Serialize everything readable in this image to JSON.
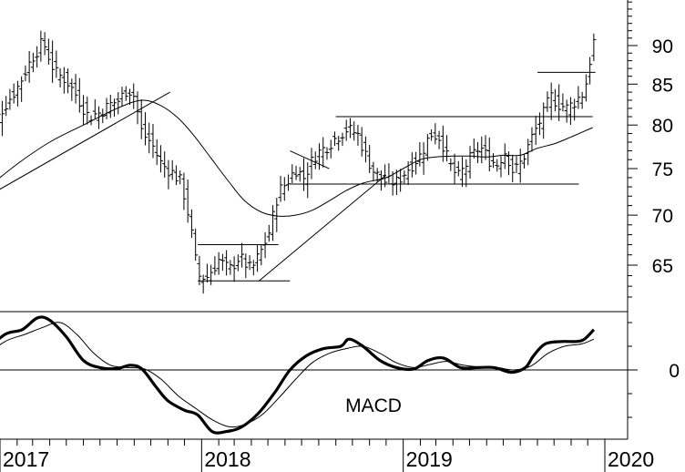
{
  "chart_data": [
    {
      "type": "ohlc",
      "panel": "price",
      "title": "",
      "xlabel": "",
      "ylabel": "",
      "y_scale": "log",
      "ylim": [
        60.5,
        97
      ],
      "y_ticks": [
        65,
        70,
        75,
        80,
        85,
        90
      ],
      "x_ticks": [
        "2017",
        "2018",
        "2019",
        "2020"
      ],
      "x_range": [
        "2016-12",
        "2020-01"
      ],
      "bar_interval": "week",
      "anchors": [
        [
          "2016-12-01",
          76.5
        ],
        [
          "2017-01-01",
          81.5
        ],
        [
          "2017-02-01",
          84.5
        ],
        [
          "2017-03-01",
          88.5
        ],
        [
          "2017-03-20",
          90.5
        ],
        [
          "2017-04-10",
          86.5
        ],
        [
          "2017-05-01",
          85.5
        ],
        [
          "2017-05-20",
          83.5
        ],
        [
          "2017-06-10",
          81.0
        ],
        [
          "2017-07-01",
          81.5
        ],
        [
          "2017-07-20",
          82.5
        ],
        [
          "2017-08-05",
          83.0
        ],
        [
          "2017-08-20",
          84.5
        ],
        [
          "2017-09-01",
          83.5
        ],
        [
          "2017-09-15",
          79.0
        ],
        [
          "2017-10-01",
          78.0
        ],
        [
          "2017-10-20",
          75.5
        ],
        [
          "2017-11-10",
          74.5
        ],
        [
          "2017-11-25",
          73.5
        ],
        [
          "2017-12-10",
          69.5
        ],
        [
          "2017-12-25",
          64.0
        ],
        [
          "2018-01-10",
          63.8
        ],
        [
          "2018-02-01",
          65.5
        ],
        [
          "2018-02-20",
          64.5
        ],
        [
          "2018-03-10",
          65.8
        ],
        [
          "2018-04-01",
          64.5
        ],
        [
          "2018-04-20",
          66.5
        ],
        [
          "2018-05-05",
          68.5
        ],
        [
          "2018-05-20",
          72.5
        ],
        [
          "2018-06-05",
          73.5
        ],
        [
          "2018-06-20",
          75.0
        ],
        [
          "2018-07-05",
          74.0
        ],
        [
          "2018-07-25",
          76.5
        ],
        [
          "2018-08-15",
          77.5
        ],
        [
          "2018-09-01",
          78.5
        ],
        [
          "2018-09-20",
          79.5
        ],
        [
          "2018-10-10",
          79.0
        ],
        [
          "2018-10-25",
          76.5
        ],
        [
          "2018-11-10",
          74.5
        ],
        [
          "2018-12-01",
          73.5
        ],
        [
          "2018-12-20",
          73.5
        ],
        [
          "2019-01-10",
          75.0
        ],
        [
          "2019-02-01",
          76.5
        ],
        [
          "2019-02-20",
          79.0
        ],
        [
          "2019-03-10",
          78.5
        ],
        [
          "2019-03-25",
          75.5
        ],
        [
          "2019-04-10",
          74.0
        ],
        [
          "2019-05-01",
          76.0
        ],
        [
          "2019-05-20",
          77.5
        ],
        [
          "2019-06-05",
          76.0
        ],
        [
          "2019-06-20",
          75.5
        ],
        [
          "2019-07-05",
          77.0
        ],
        [
          "2019-07-20",
          74.5
        ],
        [
          "2019-08-05",
          76.0
        ],
        [
          "2019-08-25",
          79.0
        ],
        [
          "2019-09-10",
          81.0
        ],
        [
          "2019-09-25",
          83.5
        ],
        [
          "2019-10-10",
          82.5
        ],
        [
          "2019-10-25",
          82.0
        ],
        [
          "2019-11-10",
          83.0
        ],
        [
          "2019-11-25",
          84.0
        ],
        [
          "2019-12-05",
          88.0
        ],
        [
          "2019-12-12",
          90.5
        ]
      ],
      "moving_average": [
        [
          "2016-12-01",
          72.5
        ],
        [
          "2017-02-01",
          75.5
        ],
        [
          "2017-04-01",
          78.0
        ],
        [
          "2017-06-01",
          80.0
        ],
        [
          "2017-08-01",
          82.0
        ],
        [
          "2017-09-15",
          83.0
        ],
        [
          "2017-10-20",
          82.3
        ],
        [
          "2017-11-20",
          80.8
        ],
        [
          "2017-12-20",
          78.6
        ],
        [
          "2018-01-20",
          76.0
        ],
        [
          "2018-02-20",
          73.5
        ],
        [
          "2018-03-20",
          71.5
        ],
        [
          "2018-04-20",
          70.3
        ],
        [
          "2018-05-20",
          69.9
        ],
        [
          "2018-06-20",
          70.0
        ],
        [
          "2018-07-20",
          70.5
        ],
        [
          "2018-08-20",
          71.5
        ],
        [
          "2018-09-20",
          72.6
        ],
        [
          "2018-10-20",
          73.4
        ],
        [
          "2018-12-01",
          74.0
        ],
        [
          "2019-01-01",
          75.0
        ],
        [
          "2019-02-01",
          76.0
        ],
        [
          "2019-03-01",
          76.3
        ],
        [
          "2019-04-01",
          76.4
        ],
        [
          "2019-05-01",
          76.4
        ],
        [
          "2019-06-01",
          76.3
        ],
        [
          "2019-07-01",
          76.5
        ],
        [
          "2019-08-01",
          76.5
        ],
        [
          "2019-09-01",
          77.3
        ],
        [
          "2019-10-01",
          77.8
        ],
        [
          "2019-11-01",
          78.6
        ],
        [
          "2019-12-10",
          79.7
        ]
      ],
      "trendlines": [
        {
          "kind": "diagonal",
          "points": [
            [
              "2016-12-01",
              71.7
            ],
            [
              "2017-11-05",
              84.0
            ]
          ]
        },
        {
          "kind": "diagonal",
          "points": [
            [
              "2018-04-15",
              63.5
            ],
            [
              "2018-12-01",
              74.3
            ]
          ]
        },
        {
          "kind": "diagonal",
          "points": [
            [
              "2018-06-10",
              77.0
            ],
            [
              "2018-08-20",
              75.0
            ]
          ]
        },
        {
          "kind": "horizontal",
          "points": [
            [
              "2017-12-25",
              63.5
            ],
            [
              "2018-06-10",
              63.5
            ]
          ]
        },
        {
          "kind": "horizontal",
          "points": [
            [
              "2017-12-25",
              67.0
            ],
            [
              "2018-05-20",
              67.0
            ]
          ]
        },
        {
          "kind": "horizontal",
          "points": [
            [
              "2018-06-10",
              73.3
            ],
            [
              "2019-11-15",
              73.3
            ]
          ]
        },
        {
          "kind": "horizontal",
          "points": [
            [
              "2018-09-01",
              81.0
            ],
            [
              "2019-12-10",
              81.0
            ]
          ]
        },
        {
          "kind": "horizontal",
          "points": [
            [
              "2019-09-01",
              86.5
            ],
            [
              "2019-12-15",
              86.5
            ]
          ]
        }
      ]
    },
    {
      "type": "line",
      "panel": "indicator",
      "title": "MACD",
      "y_ticks": [
        0
      ],
      "ylim": [
        -1.7,
        1.75
      ],
      "series": [
        {
          "style": "thick",
          "points": [
            [
              "2016-12-01",
              0.35
            ],
            [
              "2017-01-10",
              0.75
            ],
            [
              "2017-02-10",
              0.85
            ],
            [
              "2017-03-10",
              1.1
            ],
            [
              "2017-04-01",
              1.05
            ],
            [
              "2017-05-01",
              0.7
            ],
            [
              "2017-06-01",
              0.2
            ],
            [
              "2017-07-01",
              0.05
            ],
            [
              "2017-08-01",
              0.03
            ],
            [
              "2017-08-25",
              0.1
            ],
            [
              "2017-09-15",
              0.02
            ],
            [
              "2017-10-10",
              -0.35
            ],
            [
              "2017-11-01",
              -0.65
            ],
            [
              "2017-12-01",
              -0.85
            ],
            [
              "2017-12-25",
              -0.95
            ],
            [
              "2018-01-20",
              -1.3
            ],
            [
              "2018-02-15",
              -1.3
            ],
            [
              "2018-03-15",
              -1.2
            ],
            [
              "2018-04-15",
              -0.9
            ],
            [
              "2018-05-15",
              -0.45
            ],
            [
              "2018-06-10",
              0.0
            ],
            [
              "2018-07-10",
              0.3
            ],
            [
              "2018-08-10",
              0.45
            ],
            [
              "2018-09-10",
              0.5
            ],
            [
              "2018-09-25",
              0.65
            ],
            [
              "2018-10-20",
              0.5
            ],
            [
              "2018-11-20",
              0.2
            ],
            [
              "2018-12-20",
              0.05
            ],
            [
              "2019-01-20",
              0.02
            ],
            [
              "2019-02-15",
              0.2
            ],
            [
              "2019-03-15",
              0.25
            ],
            [
              "2019-04-15",
              0.05
            ],
            [
              "2019-05-15",
              0.05
            ],
            [
              "2019-06-15",
              0.05
            ],
            [
              "2019-07-15",
              -0.05
            ],
            [
              "2019-08-10",
              0.05
            ],
            [
              "2019-08-25",
              0.3
            ],
            [
              "2019-09-15",
              0.55
            ],
            [
              "2019-10-15",
              0.6
            ],
            [
              "2019-11-10",
              0.6
            ],
            [
              "2019-11-25",
              0.65
            ],
            [
              "2019-12-12",
              0.85
            ]
          ]
        },
        {
          "style": "thin",
          "points": [
            [
              "2016-12-01",
              0.25
            ],
            [
              "2017-01-10",
              0.6
            ],
            [
              "2017-02-15",
              0.75
            ],
            [
              "2017-03-20",
              0.9
            ],
            [
              "2017-04-20",
              1.0
            ],
            [
              "2017-05-20",
              0.75
            ],
            [
              "2017-06-20",
              0.35
            ],
            [
              "2017-07-20",
              0.1
            ],
            [
              "2017-08-20",
              0.05
            ],
            [
              "2017-09-20",
              0.02
            ],
            [
              "2017-10-20",
              -0.2
            ],
            [
              "2017-11-20",
              -0.55
            ],
            [
              "2017-12-20",
              -0.8
            ],
            [
              "2018-01-20",
              -1.05
            ],
            [
              "2018-02-20",
              -1.2
            ],
            [
              "2018-03-20",
              -1.15
            ],
            [
              "2018-04-20",
              -0.95
            ],
            [
              "2018-05-20",
              -0.6
            ],
            [
              "2018-06-20",
              -0.2
            ],
            [
              "2018-07-20",
              0.15
            ],
            [
              "2018-08-20",
              0.35
            ],
            [
              "2018-09-20",
              0.45
            ],
            [
              "2018-10-20",
              0.5
            ],
            [
              "2018-11-20",
              0.35
            ],
            [
              "2018-12-20",
              0.15
            ],
            [
              "2019-01-20",
              0.05
            ],
            [
              "2019-02-20",
              0.12
            ],
            [
              "2019-03-20",
              0.18
            ],
            [
              "2019-04-20",
              0.1
            ],
            [
              "2019-05-20",
              0.06
            ],
            [
              "2019-06-20",
              0.05
            ],
            [
              "2019-07-20",
              0.0
            ],
            [
              "2019-08-20",
              0.08
            ],
            [
              "2019-09-20",
              0.35
            ],
            [
              "2019-10-20",
              0.5
            ],
            [
              "2019-11-20",
              0.55
            ],
            [
              "2019-12-12",
              0.65
            ]
          ]
        }
      ]
    }
  ]
}
